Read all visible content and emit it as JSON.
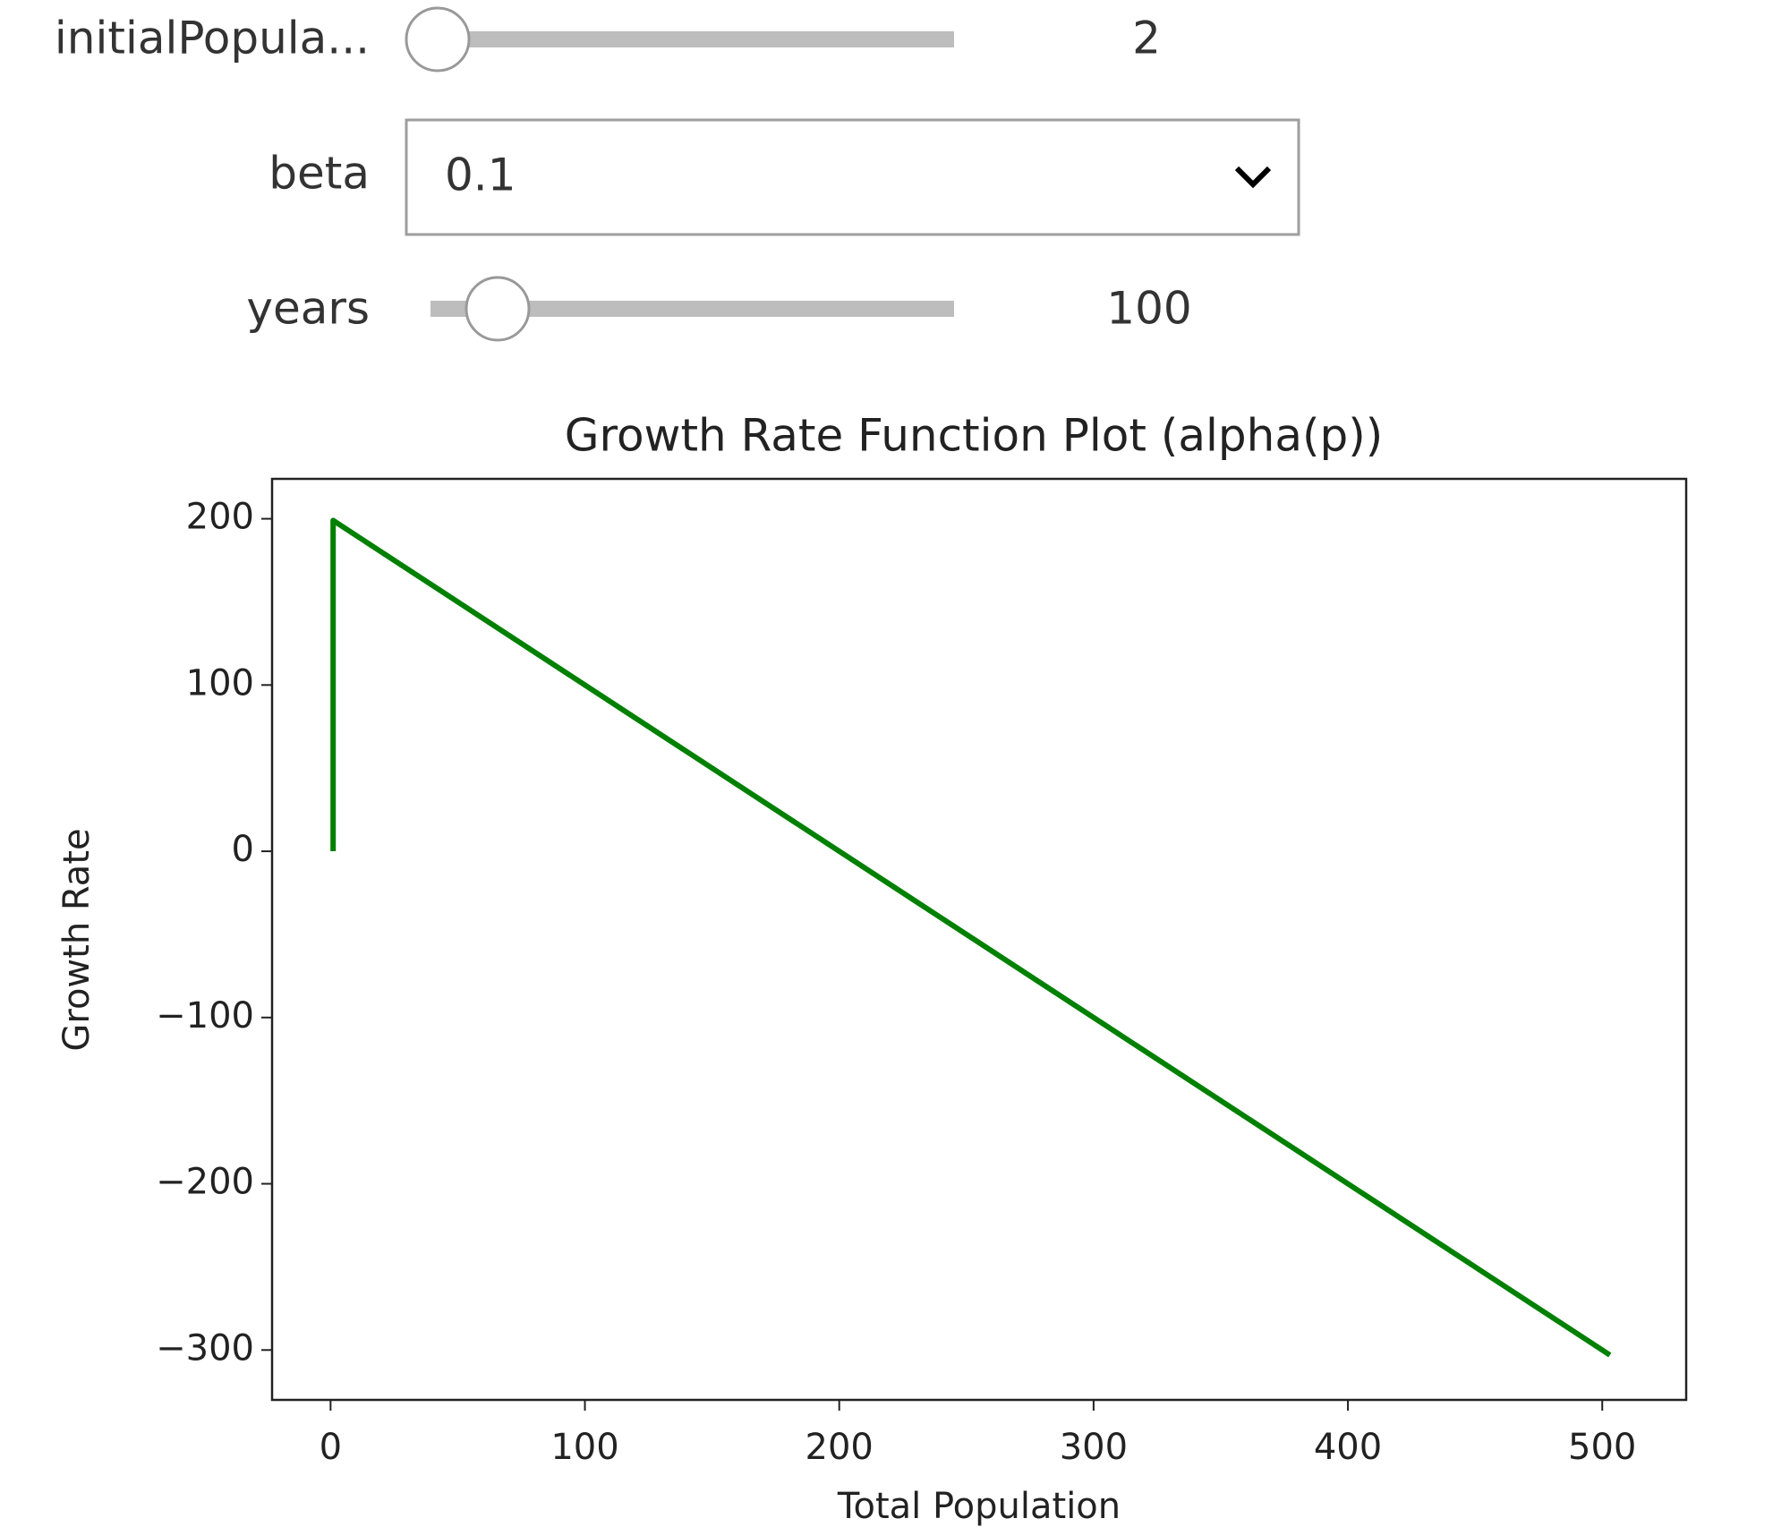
{
  "widgets": {
    "initial_population": {
      "label": "initialPopula...",
      "value": 2
    },
    "beta": {
      "label": "beta",
      "value": "0.1"
    },
    "years": {
      "label": "years",
      "value": 100
    }
  },
  "chart_data": {
    "type": "line",
    "title": "Growth Rate Function Plot (alpha(p))",
    "x_label": "Total Population",
    "y_label": "Growth Rate",
    "x": [
      1,
      1,
      503
    ],
    "series": [
      {
        "color": "#008000",
        "values": [
          0,
          199,
          -303
        ]
      }
    ],
    "xlim": [
      -23,
      533
    ],
    "ylim": [
      -330,
      224
    ],
    "xticks": [
      0,
      100,
      200,
      300,
      400,
      500
    ],
    "yticks": [
      {
        "value": -300,
        "label": "−300"
      },
      {
        "value": -200,
        "label": "−200"
      },
      {
        "value": -100,
        "label": "−100"
      },
      0,
      100,
      200
    ],
    "grid": false
  }
}
